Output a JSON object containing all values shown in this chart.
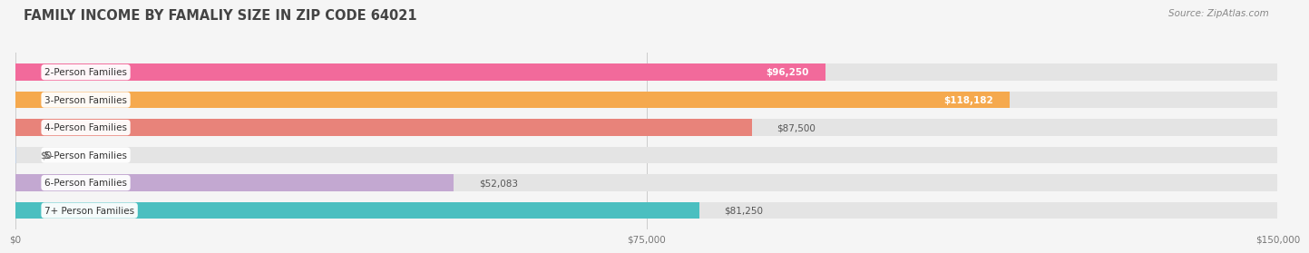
{
  "title": "FAMILY INCOME BY FAMALIY SIZE IN ZIP CODE 64021",
  "source": "Source: ZipAtlas.com",
  "categories": [
    "2-Person Families",
    "3-Person Families",
    "4-Person Families",
    "5-Person Families",
    "6-Person Families",
    "7+ Person Families"
  ],
  "values": [
    96250,
    118182,
    87500,
    0,
    52083,
    81250
  ],
  "bar_colors": [
    "#f26a9b",
    "#f5a94e",
    "#e8837a",
    "#a8c4e8",
    "#c3a8d1",
    "#4bbfc0"
  ],
  "xlim": [
    0,
    150000
  ],
  "xticks": [
    0,
    75000,
    150000
  ],
  "xtick_labels": [
    "$0",
    "$75,000",
    "$150,000"
  ],
  "value_labels": [
    "$96,250",
    "$118,182",
    "$87,500",
    "$0",
    "$52,083",
    "$81,250"
  ],
  "value_inside": [
    true,
    true,
    false,
    false,
    false,
    false
  ],
  "background_color": "#f5f5f5",
  "bar_bg_color": "#e4e4e4",
  "title_fontsize": 10.5,
  "source_fontsize": 7.5,
  "label_fontsize": 7.5,
  "value_fontsize": 7.5
}
